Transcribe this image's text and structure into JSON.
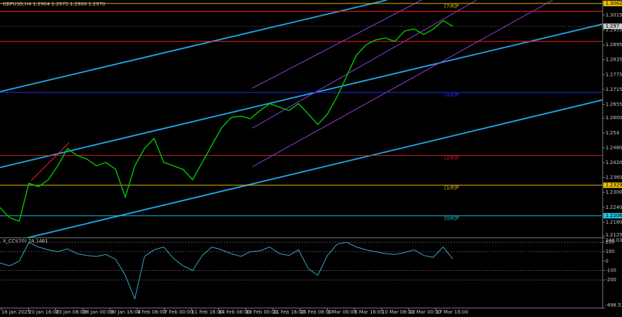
{
  "chart_data": [
    {
      "type": "line",
      "title": "GBPUSD,H4  1.2964 1.2975 1.2960 1.2970",
      "color": "#00c000",
      "values": [
        1.2239,
        1.2198,
        1.2184,
        1.2337,
        1.2323,
        1.2351,
        1.2407,
        1.2477,
        1.2449,
        1.2435,
        1.2407,
        1.2421,
        1.2393,
        1.2281,
        1.2407,
        1.2477,
        1.2518,
        1.2421,
        1.2407,
        1.2393,
        1.2351,
        1.2421,
        1.2491,
        1.256,
        1.2602,
        1.2608,
        1.2597,
        1.263,
        1.2658,
        1.2644,
        1.263,
        1.2658,
        1.2616,
        1.2574,
        1.2616,
        1.2686,
        1.277,
        1.2853,
        1.2895,
        1.2915,
        1.2923,
        1.2909,
        1.2951,
        1.2959,
        1.2937,
        1.2959,
        1.2993,
        1.297
      ],
      "ylim": [
        1.2117,
        1.3076
      ],
      "yticks": [
        1.3015,
        1.2955,
        1.2895,
        1.2835,
        1.2775,
        1.2715,
        1.2655,
        {
          "value": 1.26,
          "label": "1.2600"
        },
        1.254,
        {
          "value": 1.248,
          "label": "1.2480"
        },
        {
          "value": 1.242,
          "label": "1.2420"
        },
        {
          "value": 1.236,
          "label": "1.2360"
        },
        {
          "value": 1.23,
          "label": "1.2300"
        },
        {
          "value": 1.224,
          "label": "1.2240"
        },
        {
          "value": 1.218,
          "label": "1.2180"
        },
        1.2125
      ],
      "levels": [
        {
          "value": 1.3062,
          "tag": "[7/8]P",
          "color": "#e8c000",
          "labeled": true
        },
        {
          "value": 1.3031,
          "color": "#ff2020"
        },
        {
          "value": 1.2909,
          "color": "#ff2020"
        },
        {
          "value": 1.2703,
          "tag": "[4/8]P",
          "color": "#2030ff"
        },
        {
          "value": 1.2449,
          "tag": "[2/8]P",
          "color": "#d02020"
        },
        {
          "value": 1.2329,
          "tag": "[1/8]P",
          "color": "#e8c000",
          "labeled": true
        },
        {
          "value": 1.2206,
          "tag": "[0/8]P",
          "color": "#20c0e0",
          "labeled": true
        }
      ],
      "current_price": 1.297,
      "x_labels": [
        "16 Jan 2025",
        "20 Jan 16:00",
        "23 Jan 08:00",
        "28 Jan 00:00",
        "30 Jan 16:00",
        "4 Feb 08:00",
        "7 Feb 00:00",
        "11 Feb 16:00",
        "14 Feb 08:00",
        "19 Feb 00:00",
        "21 Feb 16:00",
        "26 Feb 08:00",
        "3 Mar 00:00",
        "5 Mar 16:00",
        "10 Mar 08:00",
        "13 Mar 00:00",
        "17 Mar 16:00"
      ]
    },
    {
      "type": "line",
      "title": "X_CCI(20) 24.1461",
      "color": "#3aa9c9",
      "values": [
        -20,
        -50,
        0,
        200,
        150,
        120,
        100,
        130,
        80,
        60,
        50,
        70,
        20,
        -150,
        -400,
        50,
        120,
        150,
        30,
        -50,
        -100,
        60,
        150,
        120,
        80,
        50,
        100,
        110,
        150,
        80,
        60,
        120,
        -80,
        -150,
        60,
        180,
        200,
        150,
        120,
        100,
        80,
        70,
        90,
        120,
        60,
        40,
        150,
        24.1461
      ],
      "ylim": [
        -498.5398,
        248.0313
      ],
      "yticks": [
        248.0313,
        200,
        100,
        0,
        -100,
        -200,
        -498.5398
      ]
    }
  ]
}
